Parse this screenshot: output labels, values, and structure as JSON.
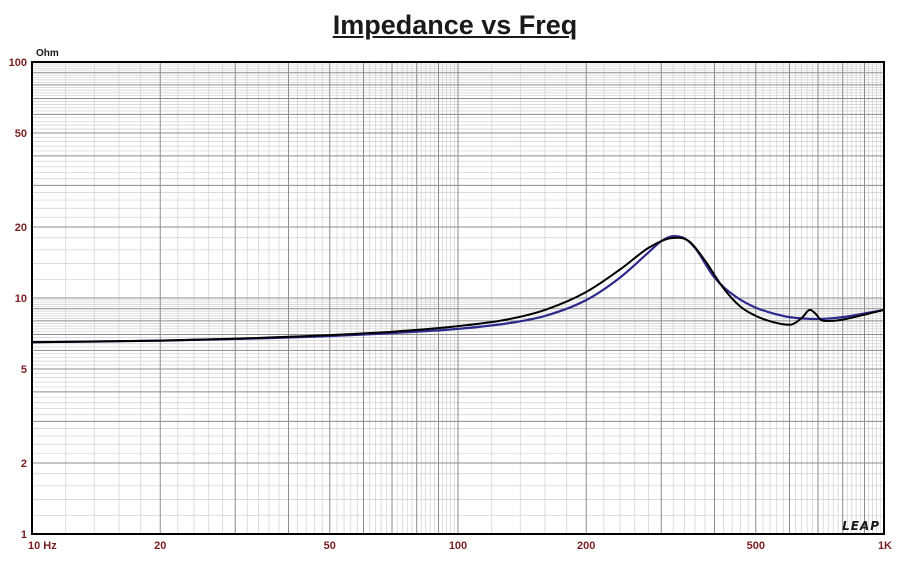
{
  "chart_data": {
    "type": "line",
    "title": "Impedance vs Freq",
    "ylabel": "Ohm",
    "x_scale": "log",
    "y_scale": "log",
    "xlim": [
      10,
      1000
    ],
    "ylim": [
      1,
      100
    ],
    "x_ticks": [
      {
        "value": 10,
        "label": "10  Hz"
      },
      {
        "value": 20,
        "label": "20"
      },
      {
        "value": 50,
        "label": "50"
      },
      {
        "value": 100,
        "label": "100"
      },
      {
        "value": 200,
        "label": "200"
      },
      {
        "value": 500,
        "label": "500"
      },
      {
        "value": 1000,
        "label": "1K"
      }
    ],
    "y_ticks": [
      {
        "value": 100,
        "label": "100"
      },
      {
        "value": 50,
        "label": "50"
      },
      {
        "value": 20,
        "label": "20"
      },
      {
        "value": 10,
        "label": "10"
      },
      {
        "value": 5,
        "label": "5"
      },
      {
        "value": 2,
        "label": "2"
      },
      {
        "value": 1,
        "label": "1"
      }
    ],
    "grid": true,
    "logo_text": "LEAP",
    "series": [
      {
        "color": "#000000",
        "x": [
          10,
          20,
          40,
          70,
          100,
          130,
          160,
          200,
          240,
          280,
          310,
          330,
          350,
          380,
          420,
          460,
          500,
          550,
          600,
          640,
          670,
          690,
          710,
          750,
          800,
          900,
          1000
        ],
        "y": [
          6.5,
          6.6,
          6.85,
          7.2,
          7.6,
          8.1,
          8.9,
          10.6,
          13.2,
          16.3,
          17.8,
          18.0,
          17.3,
          14.4,
          11.0,
          9.2,
          8.4,
          7.9,
          7.7,
          8.2,
          8.9,
          8.6,
          8.1,
          8.0,
          8.1,
          8.5,
          8.9
        ]
      },
      {
        "color": "#2e2a8c",
        "x": [
          10,
          20,
          40,
          70,
          100,
          130,
          160,
          200,
          240,
          280,
          300,
          320,
          340,
          360,
          400,
          450,
          500,
          550,
          600,
          700,
          800,
          900,
          1000
        ],
        "y": [
          6.5,
          6.6,
          6.8,
          7.1,
          7.4,
          7.8,
          8.4,
          9.8,
          12.2,
          15.6,
          17.4,
          18.3,
          17.9,
          16.3,
          12.2,
          10.1,
          9.1,
          8.6,
          8.3,
          8.15,
          8.3,
          8.6,
          8.9
        ]
      }
    ]
  }
}
